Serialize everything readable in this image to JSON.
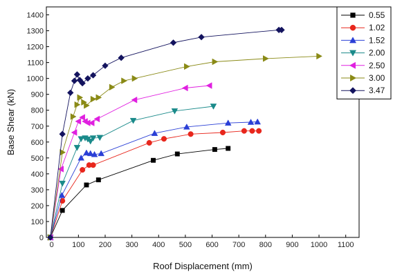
{
  "chart_data": {
    "type": "line",
    "xlabel": "Roof Displacement (mm)",
    "ylabel": "Base Shear (kN)",
    "xlim": [
      -20,
      1150
    ],
    "ylim": [
      0,
      1450
    ],
    "xticks": [
      0,
      100,
      200,
      300,
      400,
      500,
      600,
      700,
      800,
      900,
      1000,
      1100
    ],
    "yticks": [
      0,
      100,
      200,
      300,
      400,
      500,
      600,
      700,
      800,
      900,
      1000,
      1100,
      1200,
      1300,
      1400
    ],
    "legend_position": "top-right",
    "series": [
      {
        "name": "0.55",
        "color": "#000000",
        "marker": "square",
        "points": [
          [
            -5,
            0
          ],
          [
            40,
            170
          ],
          [
            130,
            330
          ],
          [
            175,
            362
          ],
          [
            380,
            485
          ],
          [
            470,
            525
          ],
          [
            610,
            553
          ],
          [
            660,
            560
          ]
        ]
      },
      {
        "name": "1.02",
        "color": "#e8261c",
        "marker": "circle",
        "points": [
          [
            -5,
            0
          ],
          [
            40,
            230
          ],
          [
            115,
            425
          ],
          [
            140,
            455
          ],
          [
            155,
            455
          ],
          [
            365,
            595
          ],
          [
            420,
            620
          ],
          [
            520,
            650
          ],
          [
            640,
            660
          ],
          [
            720,
            670
          ],
          [
            750,
            670
          ],
          [
            775,
            670
          ]
        ]
      },
      {
        "name": "1.52",
        "color": "#2a3fd6",
        "marker": "triangle-up",
        "points": [
          [
            -5,
            0
          ],
          [
            38,
            265
          ],
          [
            110,
            500
          ],
          [
            130,
            532
          ],
          [
            145,
            528
          ],
          [
            160,
            522
          ],
          [
            185,
            528
          ],
          [
            385,
            655
          ],
          [
            505,
            695
          ],
          [
            660,
            720
          ],
          [
            745,
            725
          ],
          [
            770,
            727
          ]
        ]
      },
      {
        "name": "2.00",
        "color": "#1a8a8a",
        "marker": "triangle-down",
        "points": [
          [
            -5,
            0
          ],
          [
            40,
            340
          ],
          [
            95,
            565
          ],
          [
            110,
            620
          ],
          [
            125,
            625
          ],
          [
            135,
            618
          ],
          [
            145,
            605
          ],
          [
            155,
            625
          ],
          [
            180,
            628
          ],
          [
            305,
            735
          ],
          [
            460,
            795
          ],
          [
            605,
            825
          ]
        ]
      },
      {
        "name": "2.50",
        "color": "#e020e0",
        "marker": "triangle-left",
        "points": [
          [
            -5,
            0
          ],
          [
            35,
            430
          ],
          [
            85,
            660
          ],
          [
            100,
            730
          ],
          [
            115,
            755
          ],
          [
            125,
            730
          ],
          [
            135,
            720
          ],
          [
            150,
            720
          ],
          [
            170,
            745
          ],
          [
            310,
            865
          ],
          [
            500,
            940
          ],
          [
            590,
            955
          ]
        ]
      },
      {
        "name": "3.00",
        "color": "#8a8a16",
        "marker": "triangle-right",
        "points": [
          [
            -5,
            0
          ],
          [
            40,
            535
          ],
          [
            80,
            760
          ],
          [
            95,
            835
          ],
          [
            105,
            880
          ],
          [
            120,
            850
          ],
          [
            130,
            830
          ],
          [
            155,
            870
          ],
          [
            175,
            880
          ],
          [
            225,
            945
          ],
          [
            270,
            985
          ],
          [
            310,
            1000
          ],
          [
            505,
            1075
          ],
          [
            610,
            1105
          ],
          [
            800,
            1125
          ],
          [
            1000,
            1140
          ]
        ]
      },
      {
        "name": "3.47",
        "color": "#13135e",
        "marker": "diamond",
        "points": [
          [
            -5,
            0
          ],
          [
            40,
            650
          ],
          [
            70,
            910
          ],
          [
            85,
            985
          ],
          [
            95,
            1025
          ],
          [
            105,
            990
          ],
          [
            115,
            970
          ],
          [
            135,
            1000
          ],
          [
            155,
            1020
          ],
          [
            200,
            1080
          ],
          [
            260,
            1130
          ],
          [
            455,
            1225
          ],
          [
            560,
            1260
          ],
          [
            850,
            1305
          ],
          [
            860,
            1305
          ]
        ]
      }
    ]
  }
}
